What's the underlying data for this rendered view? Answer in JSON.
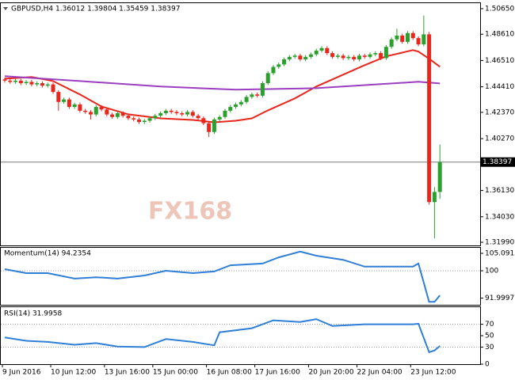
{
  "chart_data": [
    {
      "type": "candlestick",
      "title": "GBPUSD,H4  1.36012 1.39804 1.35459 1.38397",
      "watermark": "FX168",
      "categories": [
        "9 Jun 2016",
        null,
        null,
        null,
        null,
        null,
        null,
        null,
        null,
        "10 Jun 12:00",
        null,
        null,
        null,
        null,
        null,
        null,
        null,
        null,
        null,
        "13 Jun 16:00",
        null,
        null,
        null,
        null,
        null,
        null,
        null,
        null,
        "15 Jun 00:00",
        null,
        null,
        null,
        null,
        null,
        null,
        null,
        null,
        null,
        "16 Jun 08:00",
        null,
        null,
        null,
        null,
        null,
        null,
        null,
        null,
        "17 Jun 16:00",
        null,
        null,
        null,
        null,
        null,
        null,
        null,
        null,
        null,
        "20 Jun 20:00",
        null,
        null,
        null,
        null,
        null,
        null,
        null,
        null,
        "22 Jun 04:00",
        null,
        null,
        null,
        null,
        null,
        null,
        null,
        null,
        null,
        "23 Jun 12:00",
        null,
        null,
        null,
        null,
        null
      ],
      "ohlc": [
        [
          1.45,
          1.4515,
          1.4475,
          1.449
        ],
        [
          1.449,
          1.4505,
          1.4465,
          1.448
        ],
        [
          1.448,
          1.4505,
          1.4465,
          1.449
        ],
        [
          1.449,
          1.4505,
          1.4455,
          1.447
        ],
        [
          1.447,
          1.4495,
          1.4455,
          1.448
        ],
        [
          1.448,
          1.4495,
          1.4445,
          1.446
        ],
        [
          1.446,
          1.4485,
          1.4445,
          1.447
        ],
        [
          1.447,
          1.4485,
          1.4435,
          1.445
        ],
        [
          1.445,
          1.4475,
          1.4435,
          1.446
        ],
        [
          1.446,
          1.4475,
          1.4385,
          1.44
        ],
        [
          1.44,
          1.4415,
          1.425,
          1.432
        ],
        [
          1.432,
          1.4355,
          1.4305,
          1.434
        ],
        [
          1.434,
          1.4355,
          1.4265,
          1.428
        ],
        [
          1.428,
          1.4315,
          1.4265,
          1.43
        ],
        [
          1.43,
          1.4315,
          1.4235,
          1.425
        ],
        [
          1.425,
          1.4265,
          1.4225,
          1.424
        ],
        [
          1.424,
          1.4255,
          1.418,
          1.422
        ],
        [
          1.422,
          1.4295,
          1.4205,
          1.428
        ],
        [
          1.428,
          1.4295,
          1.4245,
          1.426
        ],
        [
          1.426,
          1.4275,
          1.4205,
          1.422
        ],
        [
          1.422,
          1.4235,
          1.4185,
          1.42
        ],
        [
          1.42,
          1.4245,
          1.4185,
          1.423
        ],
        [
          1.423,
          1.4245,
          1.4195,
          1.421
        ],
        [
          1.421,
          1.4225,
          1.4175,
          1.419
        ],
        [
          1.419,
          1.4205,
          1.4165,
          1.418
        ],
        [
          1.418,
          1.4195,
          1.4145,
          1.416
        ],
        [
          1.416,
          1.4185,
          1.4145,
          1.417
        ],
        [
          1.417,
          1.4205,
          1.4155,
          1.419
        ],
        [
          1.419,
          1.4225,
          1.4175,
          1.421
        ],
        [
          1.421,
          1.4245,
          1.4195,
          1.423
        ],
        [
          1.423,
          1.4265,
          1.4215,
          1.425
        ],
        [
          1.425,
          1.4265,
          1.4225,
          1.424
        ],
        [
          1.424,
          1.4255,
          1.4215,
          1.423
        ],
        [
          1.423,
          1.4245,
          1.4205,
          1.422
        ],
        [
          1.422,
          1.4255,
          1.4205,
          1.424
        ],
        [
          1.424,
          1.4255,
          1.4195,
          1.421
        ],
        [
          1.421,
          1.4225,
          1.4175,
          1.419
        ],
        [
          1.419,
          1.4205,
          1.4135,
          1.415
        ],
        [
          1.415,
          1.4165,
          1.404,
          1.408
        ],
        [
          1.408,
          1.4195,
          1.4065,
          1.418
        ],
        [
          1.418,
          1.4215,
          1.4165,
          1.42
        ],
        [
          1.42,
          1.4265,
          1.4185,
          1.425
        ],
        [
          1.425,
          1.4295,
          1.4235,
          1.428
        ],
        [
          1.428,
          1.4315,
          1.4265,
          1.43
        ],
        [
          1.43,
          1.4335,
          1.4285,
          1.432
        ],
        [
          1.432,
          1.4375,
          1.4305,
          1.436
        ],
        [
          1.436,
          1.4395,
          1.4345,
          1.438
        ],
        [
          1.438,
          1.4395,
          1.4355,
          1.437
        ],
        [
          1.437,
          1.4485,
          1.4355,
          1.447
        ],
        [
          1.447,
          1.4565,
          1.4455,
          1.455
        ],
        [
          1.455,
          1.4615,
          1.4535,
          1.46
        ],
        [
          1.46,
          1.4635,
          1.4585,
          1.462
        ],
        [
          1.462,
          1.4675,
          1.4605,
          1.466
        ],
        [
          1.466,
          1.4695,
          1.4645,
          1.468
        ],
        [
          1.468,
          1.4705,
          1.4665,
          1.469
        ],
        [
          1.469,
          1.4705,
          1.4645,
          1.466
        ],
        [
          1.466,
          1.4695,
          1.4645,
          1.468
        ],
        [
          1.468,
          1.4715,
          1.4665,
          1.47
        ],
        [
          1.47,
          1.4745,
          1.4685,
          1.473
        ],
        [
          1.473,
          1.4765,
          1.4715,
          1.475
        ],
        [
          1.475,
          1.4765,
          1.4695,
          1.471
        ],
        [
          1.471,
          1.4725,
          1.4665,
          1.468
        ],
        [
          1.468,
          1.4705,
          1.4665,
          1.469
        ],
        [
          1.469,
          1.4705,
          1.4655,
          1.467
        ],
        [
          1.467,
          1.4695,
          1.4655,
          1.468
        ],
        [
          1.468,
          1.4695,
          1.4645,
          1.466
        ],
        [
          1.466,
          1.4705,
          1.4645,
          1.469
        ],
        [
          1.469,
          1.4705,
          1.4665,
          1.468
        ],
        [
          1.468,
          1.4715,
          1.4665,
          1.47
        ],
        [
          1.47,
          1.4725,
          1.4685,
          1.471
        ],
        [
          1.471,
          1.4725,
          1.4655,
          1.467
        ],
        [
          1.467,
          1.4775,
          1.4655,
          1.476
        ],
        [
          1.476,
          1.4835,
          1.4745,
          1.482
        ],
        [
          1.482,
          1.4905,
          1.4805,
          1.485
        ],
        [
          1.485,
          1.4865,
          1.4785,
          1.48
        ],
        [
          1.48,
          1.4885,
          1.4785,
          1.487
        ],
        [
          1.487,
          1.4885,
          1.4815,
          1.483
        ],
        [
          1.483,
          1.4845,
          1.4765,
          1.478
        ],
        [
          1.478,
          1.501,
          1.4765,
          1.486
        ],
        [
          1.486,
          1.488,
          1.35,
          1.352
        ],
        [
          1.352,
          1.364,
          1.323,
          1.3601
        ],
        [
          1.36012,
          1.39804,
          1.35459,
          1.38397
        ]
      ],
      "up_color": "#2ca02c",
      "down_color": "#e8261c",
      "series": [
        {
          "color": "#e8261c",
          "x": [
            0,
            5,
            9,
            14,
            18,
            23,
            29,
            35,
            39,
            43,
            46,
            49,
            54,
            58,
            63,
            67,
            71,
            76,
            77,
            79,
            81
          ],
          "values": [
            1.4506,
            1.4519,
            1.4487,
            1.438,
            1.4284,
            1.4221,
            1.4189,
            1.4176,
            1.4157,
            1.417,
            1.4189,
            1.4253,
            1.4348,
            1.4443,
            1.4538,
            1.4614,
            1.4684,
            1.4734,
            1.4722,
            1.4665,
            1.4601
          ]
        },
        {
          "color": "#9b3fc0",
          "x": [
            0,
            14,
            29,
            43,
            58,
            70,
            77,
            81
          ],
          "values": [
            1.4526,
            1.4487,
            1.4443,
            1.4418,
            1.443,
            1.4462,
            1.4481,
            1.4468
          ]
        }
      ],
      "current_price": 1.38397,
      "ylim": [
        1.3174,
        1.5109
      ],
      "yticks": [
        {
          "value": 1.5065,
          "label": "1.50650"
        },
        {
          "value": 1.4861,
          "label": "1.48610"
        },
        {
          "value": 1.4651,
          "label": "1.46510"
        },
        {
          "value": 1.4441,
          "label": "1.44410"
        },
        {
          "value": 1.4237,
          "label": "1.42370"
        },
        {
          "value": 1.4027,
          "label": "1.40270"
        },
        {
          "value": 1.3613,
          "label": "1.36130"
        },
        {
          "value": 1.3403,
          "label": "1.34030"
        },
        {
          "value": 1.3199,
          "label": "1.31990"
        }
      ]
    },
    {
      "type": "line",
      "title": "Momentum(14) 94.2354",
      "color": "#2f7fd6",
      "x": [
        0,
        4,
        8,
        13,
        17,
        21,
        26,
        30,
        35,
        39,
        42,
        48,
        51,
        55,
        58,
        63,
        67,
        71,
        76,
        77,
        79,
        80,
        81
      ],
      "values": [
        100.46,
        99.3,
        99.3,
        97.7,
        98.1,
        97.7,
        98.6,
        100,
        99.3,
        99.8,
        101.6,
        102.1,
        103.9,
        105.6,
        104.4,
        103.2,
        101.2,
        101.2,
        101.2,
        102.1,
        90.9,
        90.9,
        92.8
      ],
      "ylim": [
        90.05,
        106.71
      ],
      "yticks": [
        105.0915,
        100,
        91.9997
      ],
      "levels": [
        100
      ]
    },
    {
      "type": "line",
      "title": "RSI(14) 31.9958",
      "color": "#2f7fd6",
      "x": [
        0,
        4,
        8,
        13,
        17,
        21,
        26,
        30,
        35,
        39,
        40,
        46,
        50,
        55,
        58,
        61,
        67,
        71,
        76,
        77,
        79,
        80,
        81
      ],
      "values": [
        47,
        41,
        39,
        34,
        37,
        31,
        30,
        44,
        39,
        33,
        56,
        63,
        77,
        74,
        79,
        67,
        70,
        70,
        70,
        71,
        21,
        24,
        32
      ],
      "ylim": [
        0,
        100
      ],
      "yticks": [
        70,
        50,
        30,
        0
      ],
      "levels": [
        70,
        30
      ]
    }
  ]
}
